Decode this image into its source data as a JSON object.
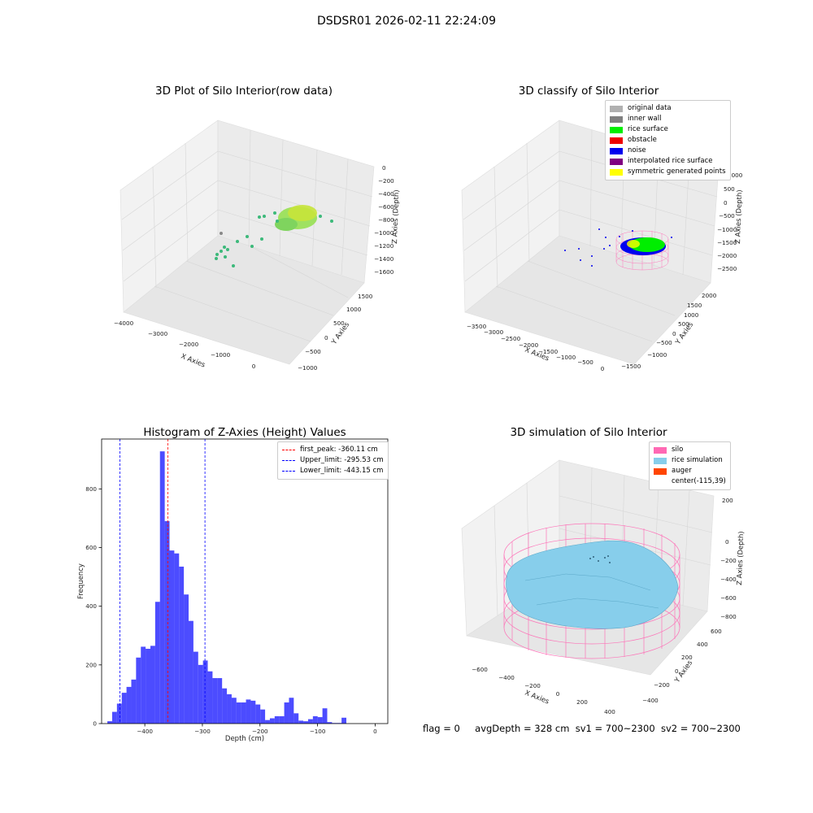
{
  "figure": {
    "title": "DSDSR01 2026-02-11 22:24:09"
  },
  "panels": {
    "raw": {
      "title": "3D Plot of Silo Interior(row data)",
      "x_label": "X Axies",
      "y_label": "Y Axies",
      "z_label": "Z Axies (Depth)",
      "x_ticks": [
        "−4000",
        "−3000",
        "−2000",
        "−1000",
        "0"
      ],
      "y_ticks": [
        "−1000",
        "−500",
        "0",
        "500",
        "1000",
        "1500"
      ],
      "z_ticks": [
        "0",
        "−200",
        "−400",
        "−600",
        "−800",
        "−1000",
        "−1200",
        "−1400",
        "−1600"
      ]
    },
    "classify": {
      "title": "3D classify of Silo Interior",
      "x_label": "X Axies",
      "y_label": "Y Axies",
      "z_label": "Z Axies (Depth)",
      "x_ticks": [
        "−3500",
        "−3000",
        "−2500",
        "−2000",
        "−1500",
        "−1000",
        "−500",
        "0"
      ],
      "y_ticks": [
        "−1500",
        "−1000",
        "−500",
        "0",
        "500",
        "1000",
        "1500",
        "2000"
      ],
      "z_ticks": [
        "1000",
        "500",
        "0",
        "−500",
        "−1000",
        "−1500",
        "−2000",
        "−2500"
      ],
      "legend": [
        {
          "label": "original data",
          "color": "#b0b0b0"
        },
        {
          "label": "inner wall",
          "color": "#808080"
        },
        {
          "label": "rice surface",
          "color": "#00ee00"
        },
        {
          "label": "obstacle",
          "color": "#ee0000"
        },
        {
          "label": "noise",
          "color": "#0000ee"
        },
        {
          "label": "interpolated rice surface",
          "color": "#800080"
        },
        {
          "label": "symmetric generated points",
          "color": "#ffff00"
        }
      ]
    },
    "histogram": {
      "title": "Histogram of Z-Axies (Height) Values",
      "legend": [
        {
          "label": "first_peak: -360.11 cm",
          "color": "#ff0000"
        },
        {
          "label": "Upper_limit: -295.53 cm",
          "color": "#0000ff"
        },
        {
          "label": "Lower_limit: -443.15 cm",
          "color": "#0000ff"
        }
      ]
    },
    "simulation": {
      "title": "3D simulation of Silo Interior",
      "x_label": "X Axies",
      "y_label": "Y Axies",
      "z_label": "Z Axies (Depth)",
      "x_ticks": [
        "−600",
        "−400",
        "−200",
        "0",
        "200",
        "400"
      ],
      "y_ticks": [
        "−400",
        "−200",
        "0",
        "200",
        "400",
        "600"
      ],
      "z_ticks": [
        "200",
        "0",
        "−200",
        "−400",
        "−600",
        "−800"
      ],
      "legend": [
        {
          "label": "silo",
          "color": "#ff69b4"
        },
        {
          "label": "rice simulation",
          "color": "#87ceeb"
        },
        {
          "label": "auger",
          "color": "#ff4500"
        },
        {
          "label": "center(-115,39)",
          "color": ""
        }
      ]
    }
  },
  "status": {
    "flag": "flag = 0",
    "avg_depth": "avgDepth = 328 cm",
    "sv1": "sv1 = 700~2300",
    "sv2": "sv2 = 700~2300"
  },
  "chart_data": [
    {
      "type": "histogram",
      "title": "Histogram of Z-Axies (Height) Values",
      "xlabel": "Depth (cm)",
      "ylabel": "Frequency",
      "xlim": [
        -475,
        22
      ],
      "ylim": [
        0,
        970
      ],
      "x_ticks": [
        -400,
        -300,
        -200,
        -100,
        0
      ],
      "y_ticks": [
        0,
        200,
        400,
        600,
        800
      ],
      "bin_start": -465,
      "bin_width": 8.3,
      "bar_color": "#0000ff",
      "bar_opacity": 0.7,
      "values": [
        8,
        40,
        68,
        105,
        125,
        150,
        225,
        262,
        255,
        265,
        415,
        928,
        690,
        590,
        580,
        535,
        440,
        350,
        245,
        200,
        215,
        178,
        155,
        155,
        120,
        100,
        88,
        72,
        72,
        82,
        78,
        65,
        48,
        12,
        18,
        25,
        25,
        72,
        88,
        35,
        10,
        8,
        15,
        25,
        22,
        52,
        5,
        2,
        2,
        20
      ],
      "vlines": [
        {
          "name": "first_peak",
          "x": -360.11,
          "color": "#ff0000"
        },
        {
          "name": "Upper_limit",
          "x": -295.53,
          "color": "#0000ff"
        },
        {
          "name": "Lower_limit",
          "x": -443.15,
          "color": "#0000ff"
        }
      ]
    }
  ]
}
